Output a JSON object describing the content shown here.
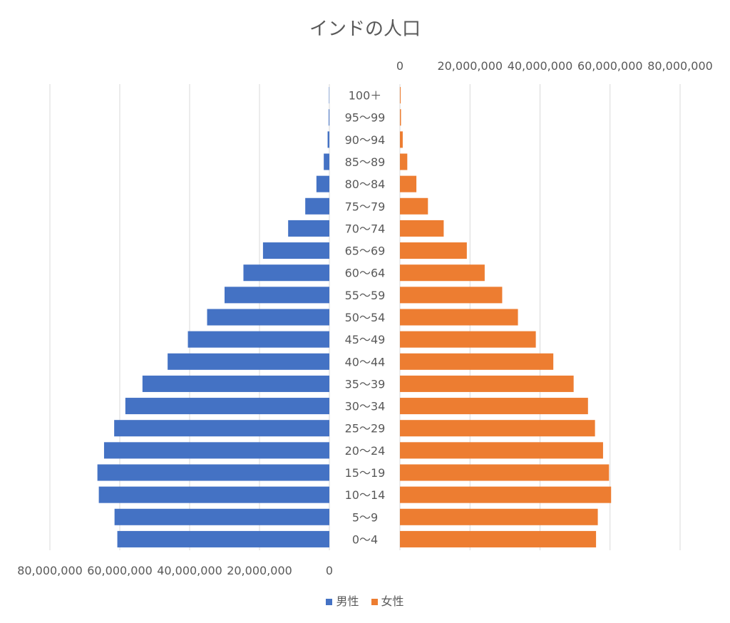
{
  "chart_data": {
    "type": "bar",
    "title": "インドの人口",
    "categories": [
      "100＋",
      "95〜99",
      "90〜94",
      "85〜89",
      "80〜84",
      "75〜79",
      "70〜74",
      "65〜69",
      "60〜64",
      "55〜59",
      "50〜54",
      "45〜49",
      "40〜44",
      "35〜39",
      "30〜34",
      "25〜29",
      "20〜24",
      "15〜19",
      "10〜14",
      "5〜9",
      "0〜4"
    ],
    "series": [
      {
        "name": "男性",
        "color": "#4472C4",
        "values": [
          100000,
          200000,
          500000,
          1600000,
          3700000,
          6900000,
          11800000,
          19000000,
          24600000,
          30000000,
          35000000,
          40500000,
          46300000,
          53500000,
          58400000,
          61600000,
          64500000,
          66400000,
          66000000,
          61500000,
          60700000
        ]
      },
      {
        "name": "女性",
        "color": "#ED7D31",
        "values": [
          200000,
          300000,
          800000,
          2100000,
          4700000,
          8000000,
          12500000,
          19100000,
          24200000,
          29200000,
          33700000,
          38800000,
          43800000,
          49600000,
          53700000,
          55700000,
          58000000,
          59700000,
          60300000,
          56500000,
          56000000
        ]
      }
    ],
    "left_axis": {
      "ticks": [
        "80,000,000",
        "60,000,000",
        "40,000,000",
        "20,000,000",
        "0"
      ],
      "tick_values": [
        80000000,
        60000000,
        40000000,
        20000000,
        0
      ],
      "xlim": [
        0,
        80000000
      ]
    },
    "right_axis": {
      "ticks": [
        "0",
        "20,000,000",
        "40,000,000",
        "60,000,000",
        "80,000,000"
      ],
      "tick_values": [
        0,
        20000000,
        40000000,
        60000000,
        80000000
      ],
      "xlim": [
        0,
        80000000
      ]
    },
    "legend_position": "bottom",
    "grid": true
  }
}
